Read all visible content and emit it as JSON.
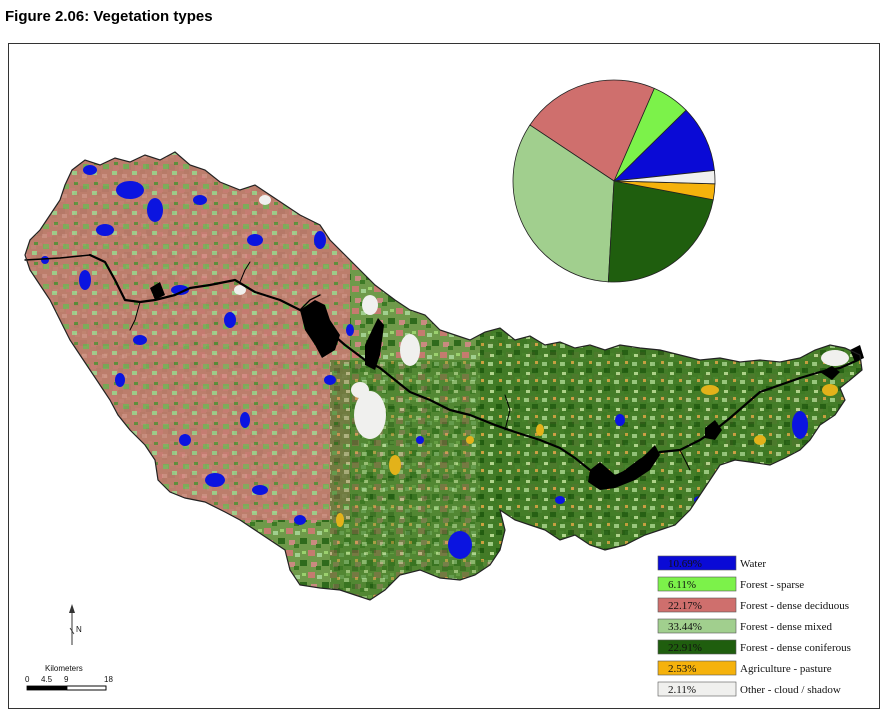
{
  "figure": {
    "title": "Figure 2.06: Vegetation types"
  },
  "chart_data": {
    "type": "pie",
    "title": "",
    "slices": [
      {
        "percent_label": "10.69%",
        "label": "Water",
        "value": 10.69,
        "color": "#0a0ad6"
      },
      {
        "percent_label": "6.11%",
        "label": "Forest - sparse",
        "value": 6.11,
        "color": "#7cf24a"
      },
      {
        "percent_label": "22.17%",
        "label": "Forest - dense deciduous",
        "value": 22.17,
        "color": "#cf6f6d"
      },
      {
        "percent_label": "33.44%",
        "label": "Forest - dense mixed",
        "value": 33.44,
        "color": "#a1cf8e"
      },
      {
        "percent_label": "22.91%",
        "label": "Forest - dense coniferous",
        "value": 22.91,
        "color": "#1f5e0e"
      },
      {
        "percent_label": "2.53%",
        "label": "Agriculture - pasture",
        "value": 2.53,
        "color": "#f5b20c"
      },
      {
        "percent_label": "2.11%",
        "label": "Other - cloud / shadow",
        "value": 2.11,
        "color": "#f0f0ee"
      }
    ],
    "pie_order": [
      "Water",
      "Forest - sparse",
      "Forest - dense deciduous",
      "Forest - dense mixed",
      "Forest - dense coniferous",
      "Agriculture - pasture",
      "Other - cloud / shadow"
    ]
  },
  "scale_bar": {
    "title": "Kilometers",
    "ticks": [
      "0",
      "4.5",
      "9",
      "18"
    ]
  },
  "north_arrow": {
    "label": "N"
  },
  "icons": {
    "north_arrow": "north-arrow-icon"
  }
}
